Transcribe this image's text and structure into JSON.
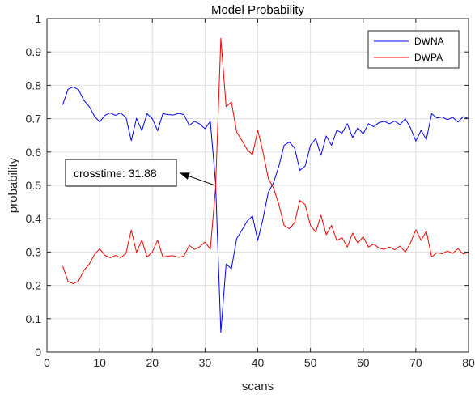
{
  "chart_data": {
    "type": "line",
    "title": "Model Probability",
    "xlabel": "scans",
    "ylabel": "probability",
    "xlim": [
      0,
      80
    ],
    "ylim": [
      0,
      1
    ],
    "xticks": [
      "0",
      "10",
      "20",
      "30",
      "40",
      "50",
      "60",
      "70",
      "80"
    ],
    "yticks": [
      "0",
      "0.1",
      "0.2",
      "0.3",
      "0.4",
      "0.5",
      "0.6",
      "0.7",
      "0.8",
      "0.9",
      "1"
    ],
    "grid": true,
    "legend_position": "top-right",
    "x": [
      3,
      4,
      5,
      6,
      7,
      8,
      9,
      10,
      11,
      12,
      13,
      14,
      15,
      16,
      17,
      18,
      19,
      20,
      21,
      22,
      23,
      24,
      25,
      26,
      27,
      28,
      29,
      30,
      31,
      32,
      33,
      34,
      35,
      36,
      37,
      38,
      39,
      40,
      41,
      42,
      43,
      44,
      45,
      46,
      47,
      48,
      49,
      50,
      51,
      52,
      53,
      54,
      55,
      56,
      57,
      58,
      59,
      60,
      61,
      62,
      63,
      64,
      65,
      66,
      67,
      68,
      69,
      70,
      71,
      72,
      73,
      74,
      75,
      76,
      77,
      78,
      79,
      80
    ],
    "series": [
      {
        "name": "DWNA",
        "color": "#0000ff",
        "values": [
          0.742,
          0.788,
          0.795,
          0.787,
          0.755,
          0.737,
          0.708,
          0.69,
          0.71,
          0.717,
          0.71,
          0.717,
          0.704,
          0.634,
          0.701,
          0.664,
          0.715,
          0.7,
          0.664,
          0.715,
          0.712,
          0.711,
          0.716,
          0.712,
          0.68,
          0.692,
          0.684,
          0.67,
          0.692,
          0.508,
          0.059,
          0.264,
          0.25,
          0.34,
          0.366,
          0.393,
          0.408,
          0.335,
          0.4,
          0.479,
          0.508,
          0.557,
          0.62,
          0.63,
          0.612,
          0.545,
          0.558,
          0.62,
          0.64,
          0.59,
          0.648,
          0.62,
          0.665,
          0.657,
          0.685,
          0.643,
          0.673,
          0.654,
          0.685,
          0.676,
          0.688,
          0.692,
          0.685,
          0.693,
          0.682,
          0.7,
          0.672,
          0.633,
          0.665,
          0.637,
          0.715,
          0.702,
          0.705,
          0.697,
          0.704,
          0.69,
          0.706,
          0.7
        ]
      },
      {
        "name": "DWPA",
        "color": "#ff0000",
        "values": [
          0.258,
          0.212,
          0.205,
          0.213,
          0.245,
          0.263,
          0.292,
          0.31,
          0.29,
          0.283,
          0.29,
          0.283,
          0.296,
          0.366,
          0.299,
          0.336,
          0.285,
          0.3,
          0.336,
          0.285,
          0.288,
          0.289,
          0.284,
          0.288,
          0.32,
          0.308,
          0.316,
          0.33,
          0.308,
          0.492,
          0.941,
          0.736,
          0.75,
          0.66,
          0.634,
          0.607,
          0.592,
          0.665,
          0.6,
          0.521,
          0.492,
          0.443,
          0.38,
          0.37,
          0.388,
          0.455,
          0.442,
          0.38,
          0.36,
          0.41,
          0.352,
          0.38,
          0.335,
          0.343,
          0.315,
          0.357,
          0.327,
          0.346,
          0.315,
          0.324,
          0.312,
          0.308,
          0.315,
          0.307,
          0.318,
          0.3,
          0.328,
          0.367,
          0.335,
          0.363,
          0.285,
          0.298,
          0.295,
          0.303,
          0.296,
          0.31,
          0.294,
          0.3
        ]
      }
    ],
    "annotation": {
      "text": "crosstime: 31.88",
      "target_x": 31.88,
      "target_y": 0.5
    }
  }
}
